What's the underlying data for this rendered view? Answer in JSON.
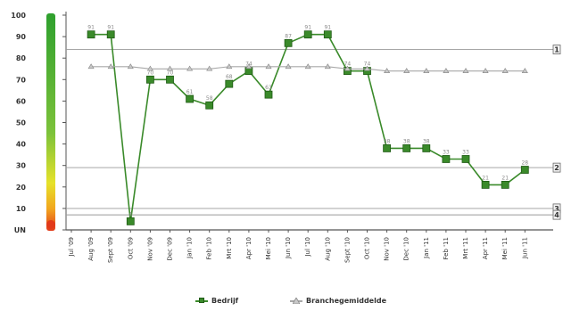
{
  "chart_data": {
    "type": "line",
    "categories": [
      "Jul '09",
      "Aug '09",
      "Sept '09",
      "Oct '09",
      "Nov '09",
      "Dec '09",
      "Jan '10",
      "Feb '10",
      "Mrt '10",
      "Apr '10",
      "Mei '10",
      "Jun '10",
      "Jul '10",
      "Aug '10",
      "Sept '10",
      "Oct '10",
      "Nov '10",
      "Dec '10",
      "Jan '11",
      "Feb '11",
      "Mrt '11",
      "Apr '11",
      "Mei '11",
      "Jun '11"
    ],
    "yticks": [
      "100",
      "90",
      "80",
      "70",
      "60",
      "50",
      "40",
      "30",
      "20",
      "10",
      "UN"
    ],
    "ylim": [
      0,
      100
    ],
    "series": [
      {
        "name": "Bedrijf",
        "color": "#3a8a2a",
        "values": [
          null,
          91,
          91,
          4,
          70,
          70,
          61,
          58,
          68,
          74,
          63,
          87,
          91,
          91,
          74,
          74,
          38,
          38,
          38,
          33,
          33,
          21,
          21,
          28
        ]
      },
      {
        "name": "Branchegemiddelde",
        "color": "#a8a8a8",
        "values": [
          null,
          76,
          76,
          76,
          75,
          75,
          75,
          75,
          76,
          76,
          76,
          76,
          76,
          76,
          75,
          75,
          74,
          74,
          74,
          74,
          74,
          74,
          74,
          74
        ]
      }
    ],
    "reference_lines": [
      {
        "value": 84,
        "label": "1"
      },
      {
        "value": 29,
        "label": "2"
      },
      {
        "value": 10,
        "label": "3"
      },
      {
        "value": 7,
        "label": "4"
      }
    ],
    "gradient_colors": [
      "#2ea02e",
      "#7cc23a",
      "#e6e22a",
      "#f2a51e",
      "#e23a1a"
    ],
    "grid": false,
    "legend_position": "bottom"
  },
  "legend": {
    "bedrijf_label": "Bedrijf",
    "branche_label": "Branchegemiddelde"
  }
}
